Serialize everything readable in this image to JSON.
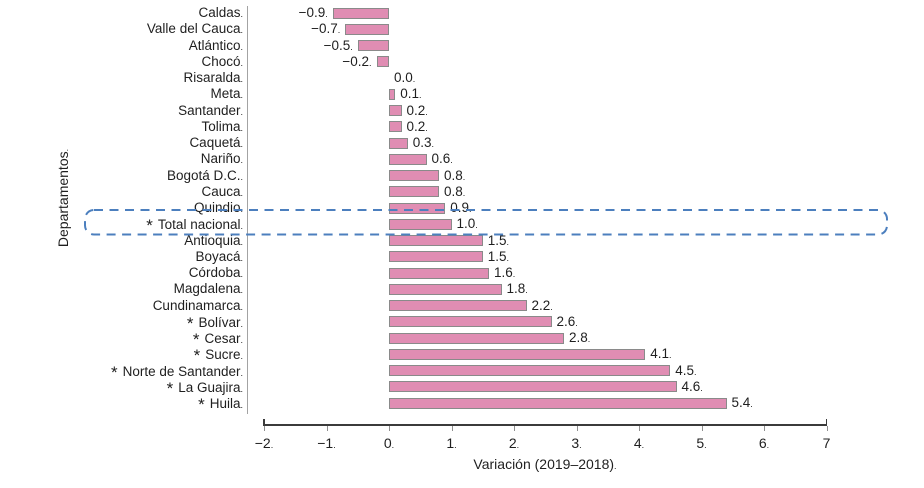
{
  "chart": {
    "y_axis_title": "Departamentos",
    "x_axis_title": "Variación (2019–2018)",
    "x_ticks": [
      "−2",
      "−1",
      "0",
      "1",
      "2",
      "3",
      "4",
      "5",
      "6",
      "7"
    ],
    "star_marker": "*",
    "highlight": {
      "category": "Total nacional",
      "style": "dashed rounded box"
    },
    "colors": {
      "bar_fill": "#e08db3",
      "bar_border": "#8a8a8a",
      "highlight_box": "#4c7fbe",
      "axis_line": "#3b3b3b",
      "spine": "#a3a3a3",
      "text": "#1f1f1f"
    }
  },
  "chart_data": {
    "type": "bar",
    "orientation": "horizontal",
    "title": "",
    "xlabel": "Variación (2019–2018)",
    "ylabel": "Departamentos",
    "xlim": [
      -2,
      7
    ],
    "grid": false,
    "legend": false,
    "categories": [
      "Caldas",
      "Valle del Cauca",
      "Atlántico",
      "Chocó",
      "Risaralda",
      "Meta",
      "Santander",
      "Tolima",
      "Caquetá",
      "Nariño",
      "Bogotá D.C.",
      "Cauca",
      "Quindio",
      "Total nacional",
      "Antioquia",
      "Boyacá",
      "Córdoba",
      "Magdalena",
      "Cundinamarca",
      "Bolívar",
      "Cesar",
      "Sucre",
      "Norte de Santander",
      "La Guajira",
      "Huila"
    ],
    "values": [
      -0.9,
      -0.7,
      -0.5,
      -0.2,
      0.0,
      0.1,
      0.2,
      0.2,
      0.3,
      0.6,
      0.8,
      0.8,
      0.9,
      1.0,
      1.5,
      1.5,
      1.6,
      1.8,
      2.2,
      2.6,
      2.8,
      4.1,
      4.5,
      4.6,
      5.4
    ],
    "value_labels": [
      "−0.9",
      "−0.7",
      "−0.5",
      "−0.2",
      "0.0",
      "0.1",
      "0.2",
      "0.2",
      "0.3",
      "0.6",
      "0.8",
      "0.8",
      "0.9",
      "1.0",
      "1.5",
      "1.5",
      "1.6",
      "1.8",
      "2.2",
      "2.6",
      "2.8",
      "4.1",
      "4.5",
      "4.6",
      "5.4"
    ],
    "starred_categories": [
      "Total nacional",
      "Bolívar",
      "Cesar",
      "Sucre",
      "Norte de Santander",
      "La Guajira",
      "Huila"
    ],
    "highlighted_category": "Total nacional"
  }
}
